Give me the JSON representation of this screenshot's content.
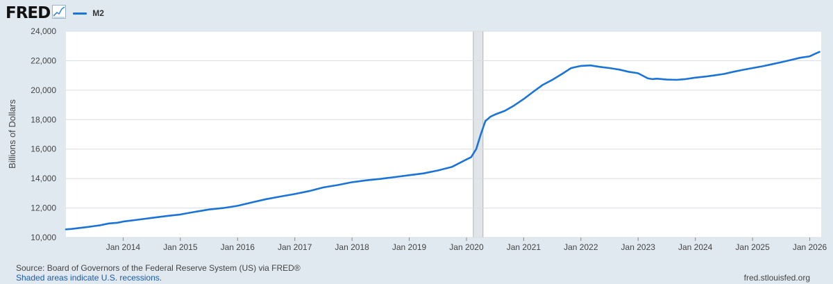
{
  "header": {
    "logo_text": "FRED",
    "logo_icon": "line-chart-icon",
    "legend_label": "M2",
    "legend_color": "#1a73d6"
  },
  "footer": {
    "source": "Source: Board of Governors of the Federal Reserve System (US) via FRED®",
    "recession_note": "Shaded areas indicate U.S. recessions.",
    "site": "fred.stlouisfed.org"
  },
  "chart_data": {
    "type": "line",
    "title": "",
    "xlabel": "",
    "ylabel": "Billions of Dollars",
    "ylim": [
      10000,
      24000
    ],
    "yticks": [
      10000,
      12000,
      14000,
      16000,
      18000,
      20000,
      22000,
      24000
    ],
    "ytick_labels": [
      "10,000",
      "12,000",
      "14,000",
      "16,000",
      "18,000",
      "20,000",
      "22,000",
      "24,000"
    ],
    "xlim": [
      2013.0,
      2026.2
    ],
    "xtick_labels": [
      "Jan 2014",
      "Jan 2015",
      "Jan 2016",
      "Jan 2017",
      "Jan 2018",
      "Jan 2019",
      "Jan 2020",
      "Jan 2021",
      "Jan 2022",
      "Jan 2023",
      "Jan 2024",
      "Jan 2025",
      "Jan 2026"
    ],
    "xtick_values": [
      2014,
      2015,
      2016,
      2017,
      2018,
      2019,
      2020,
      2021,
      2022,
      2023,
      2024,
      2025,
      2026
    ],
    "grid": true,
    "line_color": "#1a73d6",
    "recessions": [
      {
        "start": 2020.12,
        "end": 2020.29
      }
    ],
    "series": [
      {
        "x": [
          2013.0,
          2013.1,
          2013.25,
          2013.4,
          2013.5,
          2013.6,
          2013.75,
          2013.9,
          2014.0,
          2014.25,
          2014.5,
          2014.75,
          2015.0,
          2015.2,
          2015.35,
          2015.5,
          2015.75,
          2016.0,
          2016.25,
          2016.5,
          2016.75,
          2017.0,
          2017.25,
          2017.5,
          2017.75,
          2018.0,
          2018.25,
          2018.5,
          2018.75,
          2019.0,
          2019.25,
          2019.5,
          2019.75,
          2020.0,
          2020.08,
          2020.17,
          2020.25,
          2020.33,
          2020.42,
          2020.5,
          2020.67,
          2020.83,
          2021.0,
          2021.17,
          2021.33,
          2021.5,
          2021.67,
          2021.83,
          2022.0,
          2022.17,
          2022.33,
          2022.5,
          2022.67,
          2022.83,
          2023.0,
          2023.17,
          2023.25,
          2023.33,
          2023.5,
          2023.67,
          2023.83,
          2024.0,
          2024.17,
          2024.33,
          2024.5,
          2024.67,
          2024.83,
          2025.0,
          2025.17,
          2025.33,
          2025.5,
          2025.67,
          2025.83,
          2026.0,
          2026.08,
          2026.17
        ],
        "values": [
          10550,
          10580,
          10650,
          10720,
          10780,
          10830,
          10950,
          11000,
          11080,
          11200,
          11330,
          11450,
          11560,
          11700,
          11800,
          11900,
          12000,
          12150,
          12380,
          12600,
          12780,
          12950,
          13150,
          13400,
          13560,
          13750,
          13880,
          13980,
          14100,
          14230,
          14350,
          14550,
          14800,
          15300,
          15450,
          16000,
          17000,
          17900,
          18200,
          18350,
          18600,
          18950,
          19400,
          19900,
          20350,
          20700,
          21100,
          21500,
          21650,
          21680,
          21580,
          21500,
          21400,
          21250,
          21150,
          20800,
          20750,
          20780,
          20720,
          20700,
          20750,
          20850,
          20920,
          21000,
          21100,
          21250,
          21380,
          21500,
          21620,
          21750,
          21900,
          22050,
          22200,
          22300,
          22450,
          22600
        ]
      }
    ]
  }
}
